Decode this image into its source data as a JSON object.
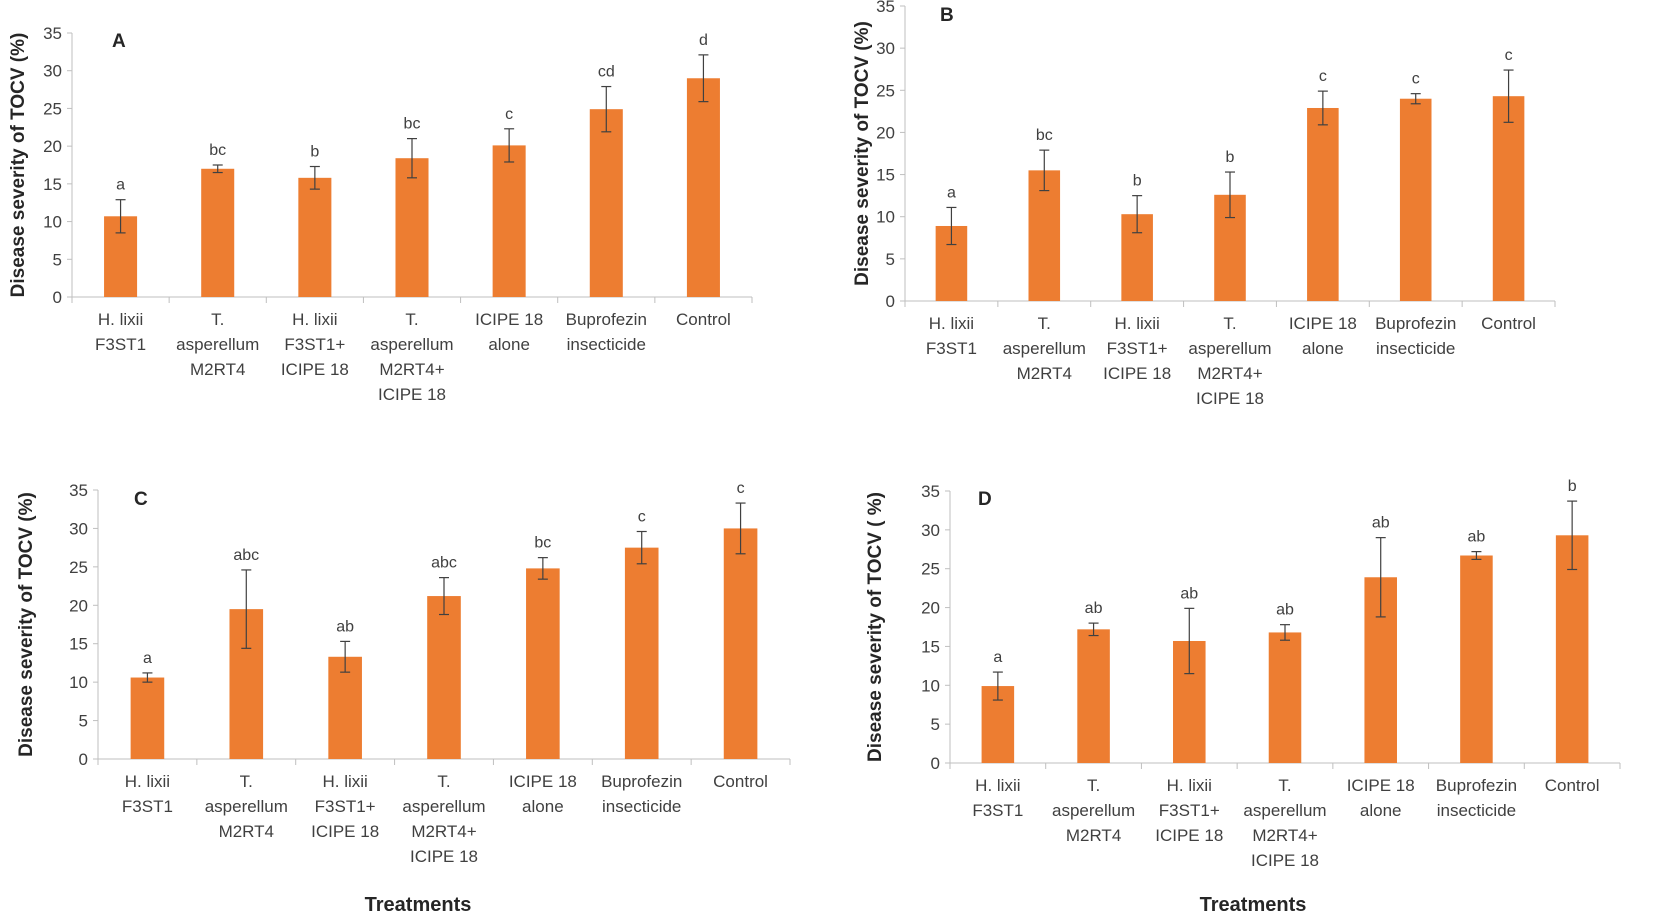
{
  "chart_data": [
    {
      "type": "bar",
      "panel": "A",
      "ylabel": "Disease severity of TOCV (%)",
      "xlabel": "",
      "ylim": [
        0,
        35
      ],
      "yticks": [
        0,
        5,
        10,
        15,
        20,
        25,
        30,
        35
      ],
      "color": "#ED7D31",
      "categories": [
        [
          "H.  lixii",
          "F3ST1"
        ],
        [
          "T.",
          "asperellum",
          "M2RT4"
        ],
        [
          "H. lixii",
          "F3ST1+",
          "ICIPE 18"
        ],
        [
          "T.",
          "asperellum",
          "M2RT4+",
          "ICIPE 18"
        ],
        [
          "ICIPE 18",
          "alone"
        ],
        [
          "Buprofezin",
          "insecticide"
        ],
        [
          "Control"
        ]
      ],
      "values": [
        10.7,
        17.0,
        15.8,
        18.4,
        20.1,
        24.9,
        29.0
      ],
      "errors": [
        2.2,
        0.5,
        1.5,
        2.6,
        2.2,
        3.0,
        3.1
      ],
      "letters": [
        "a",
        "bc",
        "b",
        "bc",
        "c",
        "cd",
        "d"
      ]
    },
    {
      "type": "bar",
      "panel": "B",
      "ylabel": "Disease severity of TOCV (%)",
      "xlabel": "",
      "ylim": [
        0,
        35
      ],
      "yticks": [
        0,
        5,
        10,
        15,
        20,
        25,
        30,
        35
      ],
      "color": "#ED7D31",
      "categories": [
        [
          "H.  lixii",
          "F3ST1"
        ],
        [
          "T.",
          "asperellum",
          "M2RT4"
        ],
        [
          "H. lixii",
          "F3ST1+",
          "ICIPE 18"
        ],
        [
          "T.",
          "asperellum",
          "M2RT4+",
          "ICIPE 18"
        ],
        [
          "ICIPE 18",
          "alone"
        ],
        [
          "Buprofezin",
          "insecticide"
        ],
        [
          "Control"
        ]
      ],
      "values": [
        8.9,
        15.5,
        10.3,
        12.6,
        22.9,
        24.0,
        24.3
      ],
      "errors": [
        2.2,
        2.4,
        2.2,
        2.7,
        2.0,
        0.6,
        3.1
      ],
      "letters": [
        "a",
        "bc",
        "b",
        "b",
        "c",
        "c",
        "c"
      ]
    },
    {
      "type": "bar",
      "panel": "C",
      "ylabel": "Disease severity of TOCV (%)",
      "xlabel": "Treatments",
      "ylim": [
        0,
        35
      ],
      "yticks": [
        0,
        5,
        10,
        15,
        20,
        25,
        30,
        35
      ],
      "color": "#ED7D31",
      "categories": [
        [
          "H.  lixii",
          "F3ST1"
        ],
        [
          "T.",
          "asperellum",
          "M2RT4"
        ],
        [
          "H. lixii",
          "F3ST1+",
          "ICIPE 18"
        ],
        [
          "T.",
          "asperellum",
          "M2RT4+",
          "ICIPE 18"
        ],
        [
          "ICIPE 18",
          "alone"
        ],
        [
          "Buprofezin",
          "insecticide"
        ],
        [
          "Control"
        ]
      ],
      "values": [
        10.6,
        19.5,
        13.3,
        21.2,
        24.8,
        27.5,
        30.0
      ],
      "errors": [
        0.6,
        5.1,
        2.0,
        2.4,
        1.4,
        2.1,
        3.3
      ],
      "letters": [
        "a",
        "abc",
        "ab",
        "abc",
        "bc",
        "c",
        "c"
      ]
    },
    {
      "type": "bar",
      "panel": "D",
      "ylabel": "Disease severity of TOCV ( %)",
      "xlabel": "Treatments",
      "ylim": [
        0,
        35
      ],
      "yticks": [
        0,
        5,
        10,
        15,
        20,
        25,
        30,
        35
      ],
      "color": "#ED7D31",
      "categories": [
        [
          "H.  lixii",
          "F3ST1"
        ],
        [
          "T.",
          "asperellum",
          "M2RT4"
        ],
        [
          "H. lixii",
          "F3ST1+",
          "ICIPE 18"
        ],
        [
          "T.",
          "asperellum",
          "M2RT4+",
          "ICIPE 18"
        ],
        [
          "ICIPE 18",
          "alone"
        ],
        [
          "Buprofezin",
          "insecticide"
        ],
        [
          "Control"
        ]
      ],
      "values": [
        9.9,
        17.2,
        15.7,
        16.8,
        23.9,
        26.7,
        29.3
      ],
      "errors": [
        1.8,
        0.8,
        4.2,
        1.0,
        5.1,
        0.5,
        4.4
      ],
      "letters": [
        "a",
        "ab",
        "ab",
        "ab",
        "ab",
        "ab",
        "b"
      ]
    }
  ]
}
